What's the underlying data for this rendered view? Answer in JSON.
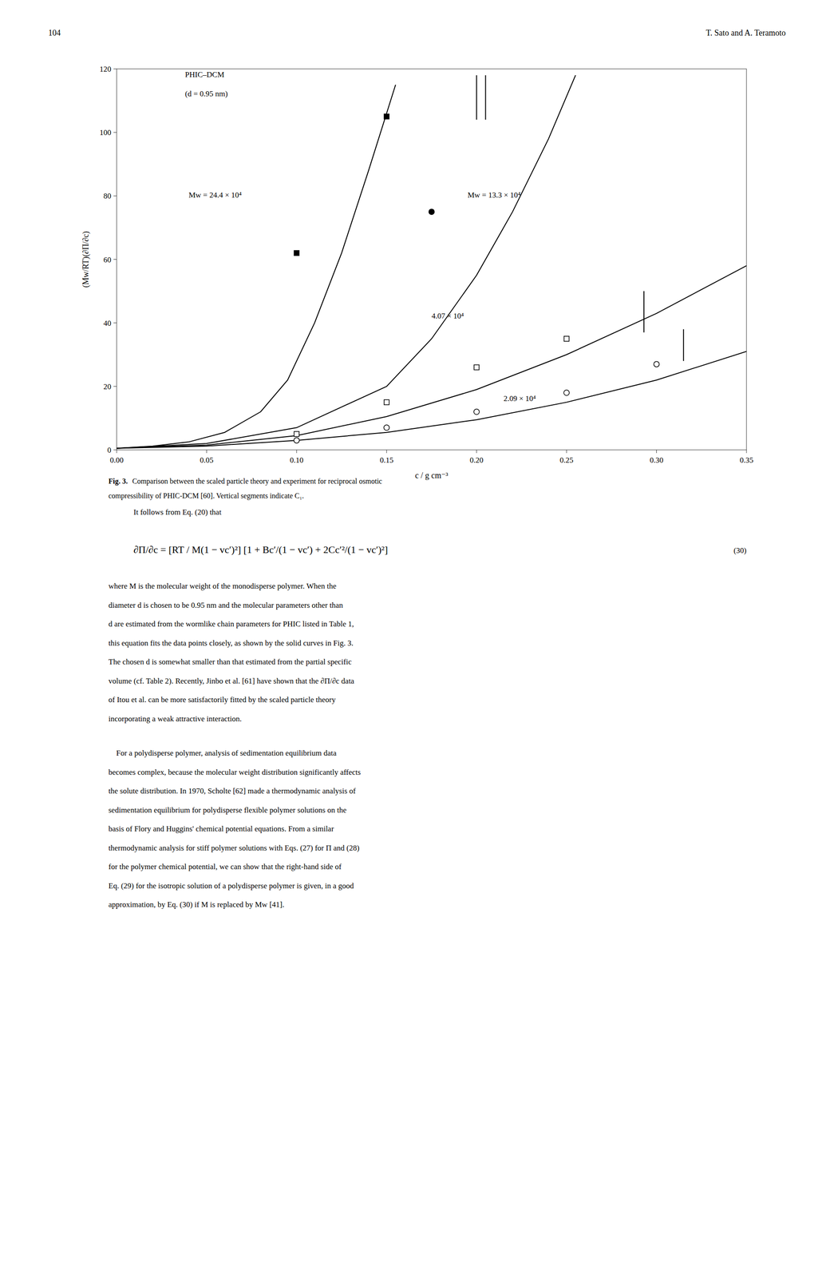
{
  "page": {
    "page_number": "104",
    "header_right": "T. Sato and A. Teramoto",
    "caption_label": "Fig. 3.",
    "caption_lines": [
      "Comparison between the scaled particle theory and experiment for reciprocal osmotic",
      "compressibility of PHIC-DCM [60]. Vertical segments indicate C₁."
    ],
    "intro": "It follows from Eq. (20) that",
    "equation": "∂Π/∂c = [RT / M(1 − vc′)²] [1 + Bc′/(1 − vc′) + 2Cc′²/(1 − vc′)²]",
    "equation_number": "(30)",
    "paragraphs": [
      [
        "where M is the molecular weight of the monodisperse polymer. When the",
        "diameter d is chosen to be 0.95 nm and the molecular parameters other than",
        "d are estimated from the wormlike chain parameters for PHIC listed in Table 1,",
        "this equation fits the data points closely, as shown by the solid curves in Fig. 3.",
        "The chosen d is somewhat smaller than that estimated from the partial specific",
        "volume (cf. Table 2). Recently, Jinbo et al. [61] have shown that the ∂Π/∂c data",
        "of Itou et al. can be more satisfactorily fitted by the scaled particle theory",
        "incorporating a weak attractive interaction."
      ],
      [
        "    For a polydisperse polymer, analysis of sedimentation equilibrium data",
        "becomes complex, because the molecular weight distribution significantly affects",
        "the solute distribution. In 1970, Scholte [62] made a thermodynamic analysis of",
        "sedimentation equilibrium for polydisperse flexible polymer solutions on the",
        "basis of Flory and Huggins' chemical potential equations. From a similar",
        "thermodynamic analysis for stiff polymer solutions with Eqs. (27) for Π and (28)",
        "for the polymer chemical potential, we can show that the right-hand side of",
        "Eq. (29) for the isotropic solution of a polydisperse polymer is given, in a good",
        "approximation, by Eq. (30) if M is replaced by Mw [41]."
      ]
    ]
  },
  "chart_data": {
    "type": "line",
    "xlabel": "c / g cm⁻³",
    "ylabel": "(Mw/RT)(∂Π/∂c)",
    "xlim": [
      0,
      0.35
    ],
    "ylim": [
      0,
      120
    ],
    "xticks": [
      {
        "value": 0,
        "label": "0.00"
      },
      0.05,
      {
        "value": 0.1,
        "label": "0.10"
      },
      0.15,
      {
        "value": 0.2,
        "label": "0.20"
      },
      0.25,
      {
        "value": 0.3,
        "label": "0.30"
      },
      0.35
    ],
    "yticks": [
      0,
      20,
      40,
      60,
      80,
      100,
      120
    ],
    "grid": false,
    "series": [
      {
        "type": "line",
        "color": "#000000",
        "x": [
          0.0,
          0.02,
          0.04,
          0.06,
          0.08,
          0.095,
          0.11,
          0.125,
          0.14,
          0.155
        ],
        "values": [
          0.5,
          1.2,
          2.5,
          5.5,
          12.0,
          22.0,
          40.0,
          62.0,
          88.0,
          115.0
        ]
      },
      {
        "type": "scatter",
        "marker": "square",
        "color": "#000000",
        "x": [
          0.1,
          0.15
        ],
        "values": [
          62,
          105
        ]
      },
      {
        "type": "line",
        "color": "#000000",
        "x": [
          0.205,
          0.205
        ],
        "values": [
          104,
          118
        ]
      },
      {
        "type": "line",
        "color": "#000000",
        "x": [
          0.0,
          0.05,
          0.1,
          0.15,
          0.175,
          0.2,
          0.22,
          0.24,
          0.255
        ],
        "values": [
          0.5,
          2.0,
          7.0,
          20.0,
          35.0,
          55.0,
          75.0,
          98.0,
          118.0
        ]
      },
      {
        "type": "scatter",
        "marker": "circle",
        "color": "#000000",
        "x": [
          0.175
        ],
        "values": [
          75
        ]
      },
      {
        "type": "line",
        "color": "#000000",
        "x": [
          0.2,
          0.2
        ],
        "values": [
          104,
          118
        ]
      },
      {
        "type": "line",
        "color": "#000000",
        "x": [
          0.0,
          0.05,
          0.1,
          0.15,
          0.2,
          0.25,
          0.3,
          0.35
        ],
        "values": [
          0.5,
          1.5,
          4.5,
          10.5,
          19.0,
          30.0,
          43.0,
          58.0
        ]
      },
      {
        "type": "scatter",
        "marker": "open-square",
        "color": "#000000",
        "x": [
          0.1,
          0.15,
          0.2,
          0.25
        ],
        "values": [
          5,
          15,
          26,
          35
        ]
      },
      {
        "type": "line",
        "color": "#000000",
        "x": [
          0.293,
          0.293
        ],
        "values": [
          37,
          50
        ]
      },
      {
        "type": "line",
        "color": "#000000",
        "x": [
          0.0,
          0.05,
          0.1,
          0.15,
          0.2,
          0.25,
          0.3,
          0.35
        ],
        "values": [
          0.5,
          1.2,
          3.0,
          5.5,
          9.5,
          15.0,
          22.0,
          31.0
        ]
      },
      {
        "type": "scatter",
        "marker": "open-circle",
        "color": "#000000",
        "x": [
          0.1,
          0.15,
          0.2,
          0.25,
          0.3
        ],
        "values": [
          3,
          7,
          12,
          18,
          27
        ]
      },
      {
        "type": "line",
        "color": "#000000",
        "x": [
          0.315,
          0.315
        ],
        "values": [
          28,
          38
        ]
      }
    ],
    "annotations": [
      {
        "text": "Mw = 24.4 × 10⁴",
        "x": 0.04,
        "y": 80
      },
      {
        "text": "Mw = 13.3 × 10⁴",
        "x": 0.195,
        "y": 80
      },
      {
        "text": "4.07 × 10⁴",
        "x": 0.175,
        "y": 42
      },
      {
        "text": "2.09 × 10⁴",
        "x": 0.215,
        "y": 16
      },
      {
        "text": "PHIC–DCM",
        "x": 0.038,
        "y": 118
      },
      {
        "text": "(d = 0.95 nm)",
        "x": 0.038,
        "y": 112
      }
    ]
  }
}
